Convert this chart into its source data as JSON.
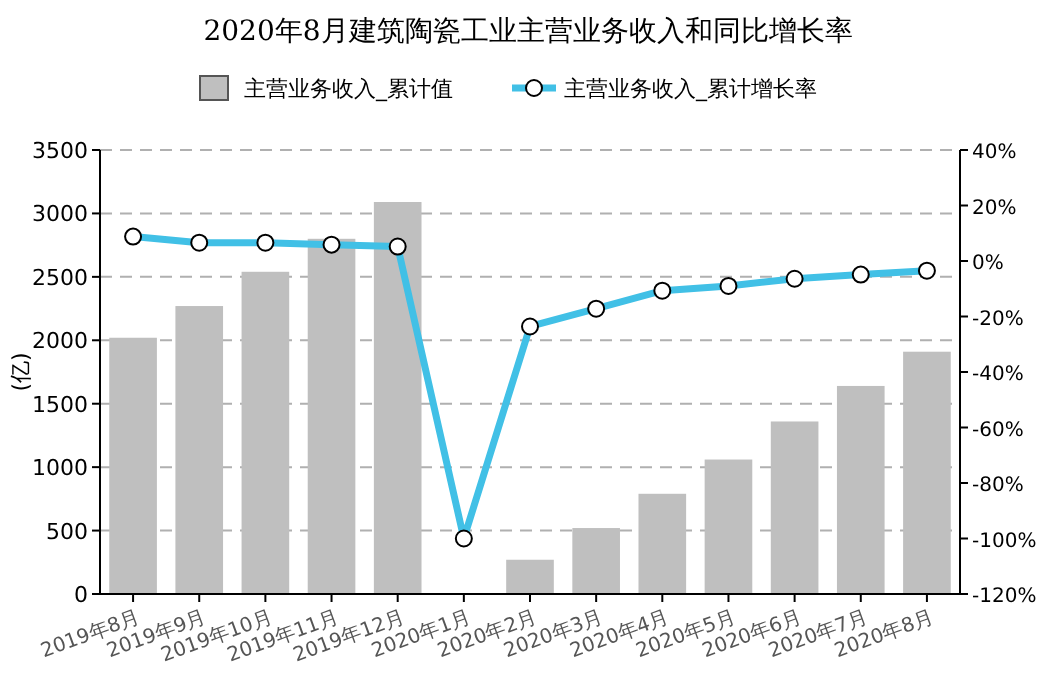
{
  "chart_data": {
    "type": "bar",
    "title": "2020年8月建筑陶瓷工业主营业务收入和同比增长率",
    "ylabel": "(亿)",
    "categories": [
      "2019年8月",
      "2019年9月",
      "2019年10月",
      "2019年11月",
      "2019年12月",
      "2020年1月",
      "2020年2月",
      "2020年3月",
      "2020年4月",
      "2020年5月",
      "2020年6月",
      "2020年7月",
      "2020年8月"
    ],
    "series": [
      {
        "name": "主营业务收入_累计值",
        "color": "#bfbfbf",
        "values": [
          2020,
          2270,
          2540,
          2800,
          3090,
          null,
          270,
          520,
          790,
          1060,
          1360,
          1640,
          1910
        ]
      },
      {
        "name": "主营业务收入_累计增长率",
        "type": "line",
        "axis": "y2",
        "color": "#41c0e6",
        "marker": "circle",
        "values": [
          8.8,
          6.6,
          6.6,
          5.9,
          5.2,
          -100,
          -23.6,
          -17.2,
          -10.7,
          -9,
          -6.4,
          -4.9,
          -3.5
        ]
      }
    ],
    "ylim": [
      0,
      3500
    ],
    "yticks": [
      0,
      500,
      1000,
      1500,
      2000,
      2500,
      3000,
      3500
    ],
    "y2lim": [
      -120,
      40
    ],
    "y2ticks": [
      {
        "value": -120,
        "label": "-120%"
      },
      {
        "value": -100,
        "label": "-100%"
      },
      {
        "value": -80,
        "label": "-80%"
      },
      {
        "value": -60,
        "label": "-60%"
      },
      {
        "value": -40,
        "label": "-40%"
      },
      {
        "value": -20,
        "label": "-20%"
      },
      {
        "value": 0,
        "label": "0%"
      },
      {
        "value": 20,
        "label": "20%"
      },
      {
        "value": 40,
        "label": "40%"
      }
    ],
    "grid": "y",
    "legend": "top"
  }
}
